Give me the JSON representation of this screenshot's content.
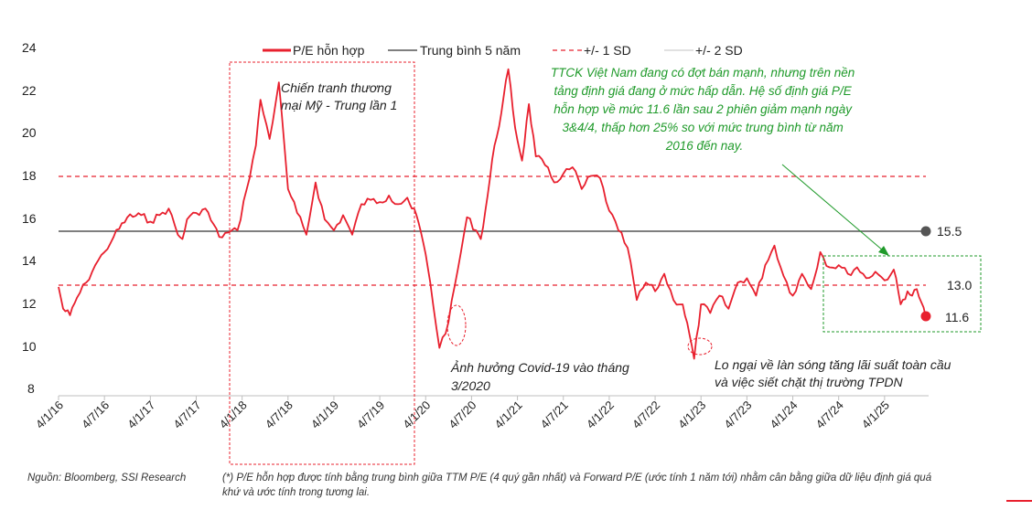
{
  "chart_data": {
    "type": "line",
    "ylim": [
      8,
      24
    ],
    "yticks": [
      "24",
      "22",
      "20",
      "18",
      "16",
      "14",
      "12",
      "10",
      "8"
    ],
    "xticks": [
      "4/1/16",
      "4/7/16",
      "4/1/17",
      "4/7/17",
      "4/1/18",
      "4/7/18",
      "4/1/19",
      "4/7/19",
      "4/1/20",
      "4/7/20",
      "4/1/21",
      "4/7/21",
      "4/1/22",
      "4/7/22",
      "4/1/23",
      "4/7/23",
      "4/1/24",
      "4/7/24",
      "4/1/25"
    ],
    "legend": {
      "pe": "P/E hỗn hợp",
      "avg": "Trung bình 5 năm",
      "sd1": "+/- 1 SD",
      "sd2": "+/- 2 SD"
    },
    "series": [
      {
        "name": "P/E hỗn hợp",
        "color": "#e8202e",
        "x": [
          0,
          0.1,
          0.25,
          0.4,
          0.6,
          0.8,
          1.0,
          1.2,
          1.5,
          1.8,
          2.0,
          2.2,
          2.4,
          2.6,
          2.7,
          2.8,
          3.0,
          3.2,
          3.5,
          3.7,
          3.9,
          4.1,
          4.3,
          4.4,
          4.6,
          4.8,
          5.0,
          5.2,
          5.4,
          5.6,
          5.8,
          6.0,
          6.2,
          6.4,
          6.6,
          6.8,
          7.0,
          7.2,
          7.4,
          7.6,
          7.7,
          7.8,
          7.95,
          8.1,
          8.3,
          8.5,
          8.7,
          8.9,
          9.1,
          9.2,
          9.35,
          9.5,
          9.65,
          9.8,
          9.95,
          10.1,
          10.25,
          10.4,
          10.6,
          10.8,
          11.0,
          11.2,
          11.4,
          11.6,
          11.8,
          12.0,
          12.2,
          12.4,
          12.6,
          12.8,
          13.0,
          13.2,
          13.4,
          13.6,
          13.75,
          13.85,
          14.0,
          14.2,
          14.4,
          14.6,
          14.8,
          15.0,
          15.2,
          15.4,
          15.6,
          15.8,
          16.0,
          16.2,
          16.4,
          16.6,
          16.8,
          17.0,
          17.2,
          17.4,
          17.6,
          17.8,
          18.0,
          18.2,
          18.35,
          18.5,
          18.6,
          18.7,
          18.8,
          18.9
        ],
        "values": [
          13.0,
          12.0,
          11.7,
          12.5,
          13.2,
          14.0,
          14.6,
          15.3,
          16.2,
          16.3,
          16.0,
          16.3,
          16.6,
          15.4,
          15.2,
          16.1,
          16.4,
          16.6,
          15.3,
          15.5,
          15.6,
          17.5,
          19.5,
          21.6,
          19.8,
          22.4,
          17.5,
          16.4,
          15.4,
          17.8,
          16.1,
          15.6,
          16.3,
          15.4,
          16.8,
          17.0,
          16.9,
          17.2,
          16.8,
          17.1,
          16.6,
          16.3,
          15.0,
          13.2,
          10.2,
          11.4,
          13.8,
          16.2,
          15.6,
          15.2,
          17.2,
          19.5,
          21.0,
          23.0,
          20.3,
          18.8,
          21.4,
          19.0,
          18.6,
          17.8,
          18.2,
          18.5,
          17.5,
          18.1,
          18.0,
          16.5,
          15.6,
          14.8,
          12.4,
          13.2,
          12.8,
          13.6,
          12.4,
          12.2,
          10.8,
          9.7,
          12.2,
          11.8,
          12.6,
          12.0,
          13.2,
          13.4,
          12.6,
          14.0,
          14.9,
          13.5,
          12.6,
          13.6,
          12.9,
          14.6,
          13.9,
          14.0,
          13.6,
          13.9,
          13.4,
          13.7,
          13.3,
          13.8,
          12.2,
          12.8,
          12.6,
          12.9,
          12.3,
          11.6
        ]
      },
      {
        "name": "Trung bình 5 năm",
        "value": 15.5,
        "color": "#555555"
      },
      {
        "name": "+/- 1 SD",
        "values": [
          18.0,
          13.0
        ],
        "color": "#e8202e"
      }
    ],
    "end_labels": {
      "avg": "15.5",
      "sd": "13.0",
      "last": "11.6"
    }
  },
  "annotations": {
    "trade_war": [
      "Chiến tranh thương",
      "mại Mỹ - Trung lần 1"
    ],
    "covid": [
      "Ảnh hưởng Covid-19 vào tháng",
      "3/2020"
    ],
    "rates": [
      "Lo ngại về làn sóng tăng lãi suất toàn cầu",
      "và việc siết chặt thị trường TPDN"
    ],
    "green_note": [
      "TTCK Việt Nam đang có đợt bán mạnh, nhưng trên nền",
      "tảng định giá đang ở mức hấp dẫn. Hệ số định giá P/E",
      "hỗn hợp về mức 11.6 lần sau 2 phiên giảm mạnh ngày",
      "3&4/4, thấp hơn 25% so với mức trung bình từ năm",
      "2016 đến nay."
    ]
  },
  "footer": {
    "source": "Nguồn: Bloomberg, SSI Research",
    "note_line1": "(*) P/E hỗn hợp được tính bằng trung bình giữa TTM P/E (4 quý gần nhất) và Forward P/E (ước tính 1 năm tới) nhằm cân bằng giữa dữ liệu định giá quá",
    "note_line2": "khứ và ước tính trong tương lai."
  },
  "colors": {
    "pe": "#e8202e",
    "avg": "#555555",
    "green": "#1f9a2a"
  }
}
